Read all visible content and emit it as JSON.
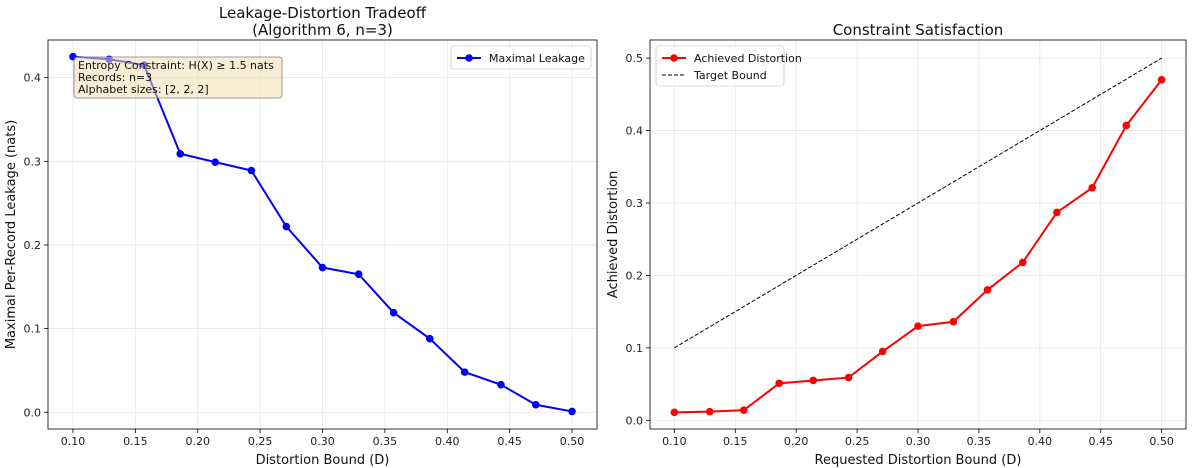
{
  "chart_data": [
    {
      "type": "line",
      "title": "Leakage-Distortion Tradeoff",
      "subtitle": "(Algorithm 6, n=3)",
      "xlabel": "Distortion Bound (D)",
      "ylabel": "Maximal Per-Record Leakage (nats)",
      "xlim": [
        0.08,
        0.52
      ],
      "ylim": [
        -0.02,
        0.445
      ],
      "xticks": [
        "0.10",
        "0.15",
        "0.20",
        "0.25",
        "0.30",
        "0.35",
        "0.40",
        "0.45",
        "0.50"
      ],
      "yticks": [
        "0.0",
        "0.1",
        "0.2",
        "0.3",
        "0.4"
      ],
      "grid": true,
      "legend_position": "top-right",
      "annotation": [
        "Entropy Constraint: H(X) ≥ 1.5 nats",
        "Records: n=3",
        "Alphabet sizes: [2, 2, 2]"
      ],
      "series": [
        {
          "name": "Maximal Leakage",
          "color": "#0000ff",
          "x": [
            0.1,
            0.129,
            0.157,
            0.186,
            0.214,
            0.243,
            0.271,
            0.3,
            0.329,
            0.357,
            0.386,
            0.414,
            0.443,
            0.471,
            0.5
          ],
          "values": [
            0.425,
            0.422,
            0.415,
            0.309,
            0.299,
            0.289,
            0.222,
            0.173,
            0.165,
            0.119,
            0.088,
            0.048,
            0.033,
            0.009,
            0.001
          ]
        }
      ]
    },
    {
      "type": "line",
      "title": "Constraint Satisfaction",
      "xlabel": "Requested Distortion Bound (D)",
      "ylabel": "Achieved Distortion",
      "xlim": [
        0.08,
        0.52
      ],
      "ylim": [
        -0.012,
        0.525
      ],
      "xticks": [
        "0.10",
        "0.15",
        "0.20",
        "0.25",
        "0.30",
        "0.35",
        "0.40",
        "0.45",
        "0.50"
      ],
      "yticks": [
        "0.0",
        "0.1",
        "0.2",
        "0.3",
        "0.4",
        "0.5"
      ],
      "grid": true,
      "legend_position": "top-left",
      "series": [
        {
          "name": "Achieved Distortion",
          "color": "#ff0000",
          "x": [
            0.1,
            0.129,
            0.157,
            0.186,
            0.214,
            0.243,
            0.271,
            0.3,
            0.329,
            0.357,
            0.386,
            0.414,
            0.443,
            0.471,
            0.5
          ],
          "values": [
            0.011,
            0.012,
            0.014,
            0.051,
            0.055,
            0.059,
            0.095,
            0.13,
            0.136,
            0.18,
            0.218,
            0.287,
            0.321,
            0.407,
            0.47
          ]
        },
        {
          "name": "Target Bound",
          "color": "#000000",
          "dashed": true,
          "x": [
            0.1,
            0.5
          ],
          "values": [
            0.1,
            0.5
          ]
        }
      ]
    }
  ]
}
